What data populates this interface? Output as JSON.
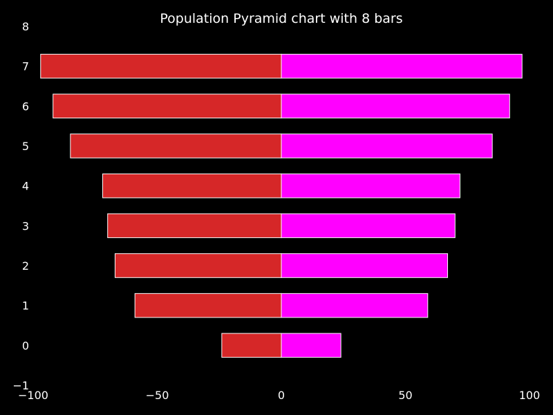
{
  "chart_data": {
    "type": "bar",
    "orientation": "horizontal",
    "layout": "population-pyramid",
    "title": "Population Pyramid chart with 8 bars",
    "xlabel": "",
    "ylabel": "",
    "categories": [
      0,
      1,
      2,
      3,
      4,
      5,
      6,
      7
    ],
    "xlim": [
      -100,
      100
    ],
    "ylim": [
      -1,
      8
    ],
    "xticks": [
      -100,
      -50,
      0,
      50,
      100
    ],
    "xtick_labels": [
      "−100",
      "−50",
      "0",
      "50",
      "100"
    ],
    "yticks": [
      -1,
      0,
      1,
      2,
      3,
      4,
      5,
      6,
      7,
      8
    ],
    "ytick_labels": [
      "−1",
      "0",
      "1",
      "2",
      "3",
      "4",
      "5",
      "6",
      "7",
      "8"
    ],
    "grid": false,
    "legend": "none",
    "background_color": "#000000",
    "text_color": "#ffffff",
    "edge_color": "#ffffff",
    "series": [
      {
        "side": "left",
        "color": "#d62728",
        "values": [
          -24,
          -59,
          -67,
          -70,
          -72,
          -85,
          -92,
          -97
        ]
      },
      {
        "side": "right",
        "color": "#ff00ff",
        "values": [
          24,
          59,
          67,
          70,
          72,
          85,
          92,
          97
        ]
      }
    ]
  }
}
